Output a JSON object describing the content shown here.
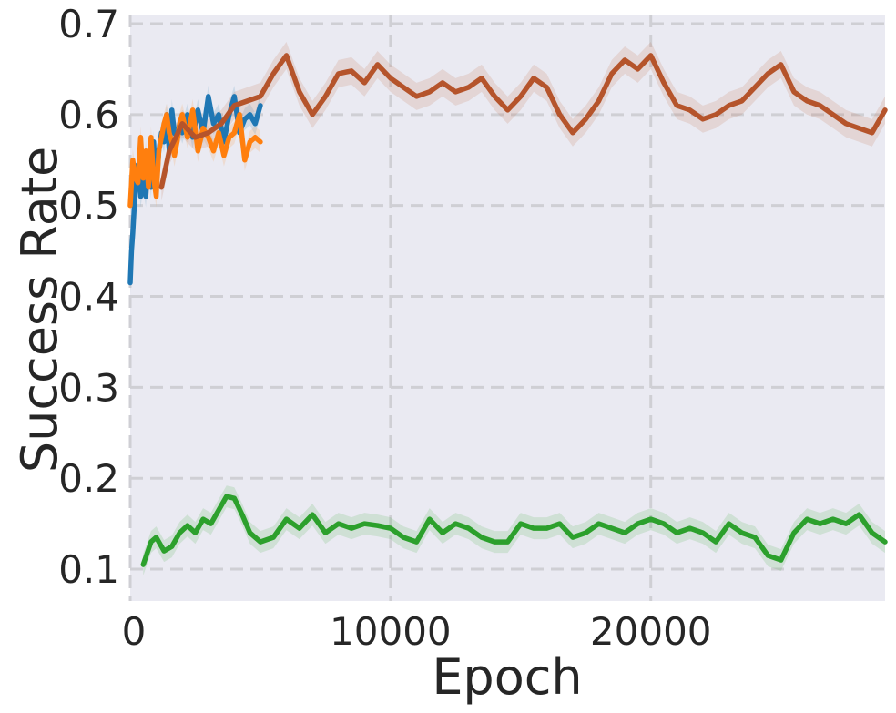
{
  "chart_data": {
    "type": "line",
    "title": "",
    "xlabel": "Epoch",
    "ylabel": "Success Rate",
    "xlim": [
      0,
      29000
    ],
    "ylim": [
      0.065,
      0.71
    ],
    "xticks": [
      0,
      10000,
      20000
    ],
    "xtick_labels": [
      "0",
      "10000",
      "20000"
    ],
    "yticks": [
      0.1,
      0.2,
      0.3,
      0.4,
      0.5,
      0.6,
      0.7
    ],
    "ytick_labels": [
      "0.1",
      "0.2",
      "0.3",
      "0.4",
      "0.5",
      "0.6",
      "0.7"
    ],
    "grid": true,
    "legend": "none",
    "background_color": "#eaeaf2",
    "series": [
      {
        "color": "#1f77b4",
        "band": 0.012,
        "x": [
          0,
          50,
          100,
          200,
          300,
          400,
          500,
          600,
          700,
          800,
          900,
          1000,
          1100,
          1200,
          1300,
          1400,
          1500,
          1600,
          1700,
          1800,
          1900,
          2000,
          2200,
          2400,
          2600,
          2800,
          3000,
          3200,
          3400,
          3600,
          3800,
          4000,
          4200,
          4400,
          4600,
          4800,
          5000
        ],
        "y": [
          0.415,
          0.45,
          0.47,
          0.52,
          0.545,
          0.51,
          0.53,
          0.51,
          0.55,
          0.52,
          0.57,
          0.52,
          0.56,
          0.58,
          0.57,
          0.6,
          0.56,
          0.605,
          0.58,
          0.575,
          0.59,
          0.58,
          0.6,
          0.575,
          0.605,
          0.58,
          0.62,
          0.59,
          0.6,
          0.57,
          0.6,
          0.62,
          0.58,
          0.595,
          0.6,
          0.59,
          0.61
        ]
      },
      {
        "color": "#ff7f0e",
        "band": 0.012,
        "x": [
          0,
          100,
          200,
          300,
          400,
          500,
          600,
          700,
          800,
          900,
          1000,
          1100,
          1200,
          1300,
          1400,
          1500,
          1600,
          1700,
          1800,
          1900,
          2000,
          2200,
          2400,
          2600,
          2800,
          3000,
          3200,
          3400,
          3600,
          3800,
          4000,
          4200,
          4400,
          4600,
          4800,
          5000
        ],
        "y": [
          0.5,
          0.55,
          0.53,
          0.525,
          0.575,
          0.53,
          0.56,
          0.52,
          0.575,
          0.53,
          0.51,
          0.56,
          0.575,
          0.59,
          0.6,
          0.58,
          0.57,
          0.555,
          0.57,
          0.59,
          0.6,
          0.575,
          0.605,
          0.56,
          0.585,
          0.575,
          0.56,
          0.58,
          0.555,
          0.575,
          0.58,
          0.6,
          0.55,
          0.57,
          0.575,
          0.57
        ]
      },
      {
        "color": "#b5542b",
        "band": 0.015,
        "x": [
          1200,
          1500,
          2000,
          2500,
          3000,
          3500,
          4000,
          4500,
          5000,
          5500,
          6000,
          6500,
          7000,
          7500,
          8000,
          8500,
          9000,
          9500,
          10000,
          10500,
          11000,
          11500,
          12000,
          12500,
          13000,
          13500,
          14000,
          14500,
          15000,
          15500,
          16000,
          16500,
          17000,
          17500,
          18000,
          18500,
          19000,
          19500,
          20000,
          20500,
          21000,
          21500,
          22000,
          22500,
          23000,
          23500,
          24000,
          24500,
          25000,
          25500,
          26000,
          26500,
          27000,
          27500,
          28000,
          28500,
          29000
        ],
        "y": [
          0.52,
          0.56,
          0.59,
          0.575,
          0.58,
          0.59,
          0.61,
          0.615,
          0.62,
          0.645,
          0.665,
          0.625,
          0.6,
          0.62,
          0.645,
          0.648,
          0.635,
          0.655,
          0.64,
          0.63,
          0.62,
          0.625,
          0.635,
          0.625,
          0.63,
          0.64,
          0.62,
          0.605,
          0.62,
          0.64,
          0.63,
          0.6,
          0.58,
          0.595,
          0.615,
          0.645,
          0.66,
          0.65,
          0.665,
          0.635,
          0.61,
          0.605,
          0.595,
          0.6,
          0.61,
          0.615,
          0.63,
          0.645,
          0.655,
          0.625,
          0.615,
          0.61,
          0.6,
          0.59,
          0.585,
          0.58,
          0.605
        ]
      },
      {
        "color": "#2ca02c",
        "band": 0.012,
        "x": [
          500,
          800,
          1000,
          1300,
          1600,
          1900,
          2200,
          2500,
          2800,
          3100,
          3400,
          3700,
          4000,
          4300,
          4600,
          5000,
          5500,
          6000,
          6500,
          7000,
          7500,
          8000,
          8500,
          9000,
          9500,
          10000,
          10500,
          11000,
          11500,
          12000,
          12500,
          13000,
          13500,
          14000,
          14500,
          15000,
          15500,
          16000,
          16500,
          17000,
          17500,
          18000,
          18500,
          19000,
          19500,
          20000,
          20500,
          21000,
          21500,
          22000,
          22500,
          23000,
          23500,
          24000,
          24500,
          25000,
          25500,
          26000,
          26500,
          27000,
          27500,
          28000,
          28500,
          29000
        ],
        "y": [
          0.105,
          0.13,
          0.135,
          0.12,
          0.125,
          0.14,
          0.148,
          0.14,
          0.155,
          0.15,
          0.165,
          0.18,
          0.178,
          0.16,
          0.14,
          0.13,
          0.135,
          0.155,
          0.145,
          0.16,
          0.14,
          0.15,
          0.145,
          0.15,
          0.148,
          0.145,
          0.135,
          0.13,
          0.155,
          0.14,
          0.15,
          0.145,
          0.135,
          0.13,
          0.13,
          0.15,
          0.145,
          0.145,
          0.15,
          0.135,
          0.14,
          0.15,
          0.145,
          0.14,
          0.15,
          0.155,
          0.15,
          0.14,
          0.145,
          0.14,
          0.13,
          0.15,
          0.14,
          0.135,
          0.115,
          0.11,
          0.14,
          0.155,
          0.15,
          0.155,
          0.15,
          0.16,
          0.14,
          0.13
        ]
      }
    ]
  }
}
